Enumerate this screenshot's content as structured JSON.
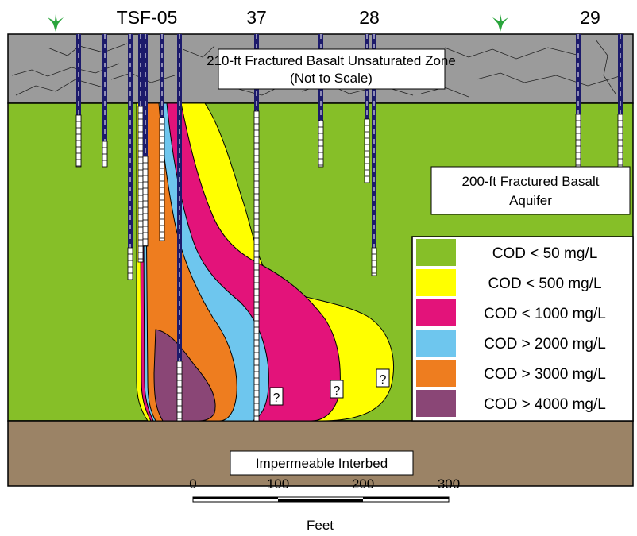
{
  "well_labels": {
    "tsf05": "TSF-05",
    "w37": "37",
    "w28": "28",
    "w29": "29"
  },
  "zones": {
    "unsaturated_line1": "210-ft Fractured Basalt Unsaturated Zone",
    "unsaturated_line2": "(Not to Scale)",
    "aquifer_line1": "200-ft Fractured Basalt",
    "aquifer_line2": "Aquifer",
    "interbed": "Impermeable Interbed"
  },
  "question_marks": [
    "?",
    "?",
    "?"
  ],
  "legend": [
    {
      "label": "COD < 50 mg/L",
      "color": "#86bf28"
    },
    {
      "label": "COD < 500 mg/L",
      "color": "#ffff00"
    },
    {
      "label": "COD < 1000 mg/L",
      "color": "#e3137a"
    },
    {
      "label": "COD > 2000 mg/L",
      "color": "#6ec6ee"
    },
    {
      "label": "COD > 3000 mg/L",
      "color": "#ee7d1f"
    },
    {
      "label": "COD > 4000 mg/L",
      "color": "#8a4676"
    }
  ],
  "colors": {
    "unsaturated": "#9b9b9b",
    "aquifer": "#86bf28",
    "interbed": "#9b8366",
    "well_casing": "#1c1a6b",
    "plant": "#2aa53c"
  },
  "scale": {
    "ticks": [
      "0",
      "100",
      "200",
      "300"
    ],
    "unit": "Feet"
  }
}
